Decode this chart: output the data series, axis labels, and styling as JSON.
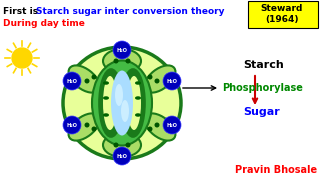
{
  "bg_color": "#ffffff",
  "title_first": "First is ",
  "title_theory": "Starch sugar inter conversion theory",
  "title_steward_box_color": "#ffff00",
  "title_steward": "Steward\n(1964)",
  "subtitle": "During day time",
  "author": "Pravin Bhosale",
  "starch_label": "Starch",
  "phosphorylase_label": "Phosphorylase",
  "sugar_label": "Sugar",
  "cell_outer_color": "#1a7a1a",
  "cell_outer_light": "#44bb44",
  "cell_fill_yellow": "#e8ff99",
  "cell_fill_medium": "#aadd66",
  "guard_cell_dark": "#1a7a1a",
  "guard_inner_light": "#ccffcc",
  "stoma_color": "#aaddff",
  "stoma_color2": "#cceeff",
  "h2o_circle_color": "#0000bb",
  "h2o_text_color": "#ffffff",
  "chloroplast_color": "#006400",
  "chloroplast_light": "#2ea02e",
  "dot_color": "#005500",
  "arrow_color": "#000000",
  "red_arrow_color": "#cc0000",
  "sun_color": "#FFD700",
  "sun_ray_color": "#FFD700"
}
